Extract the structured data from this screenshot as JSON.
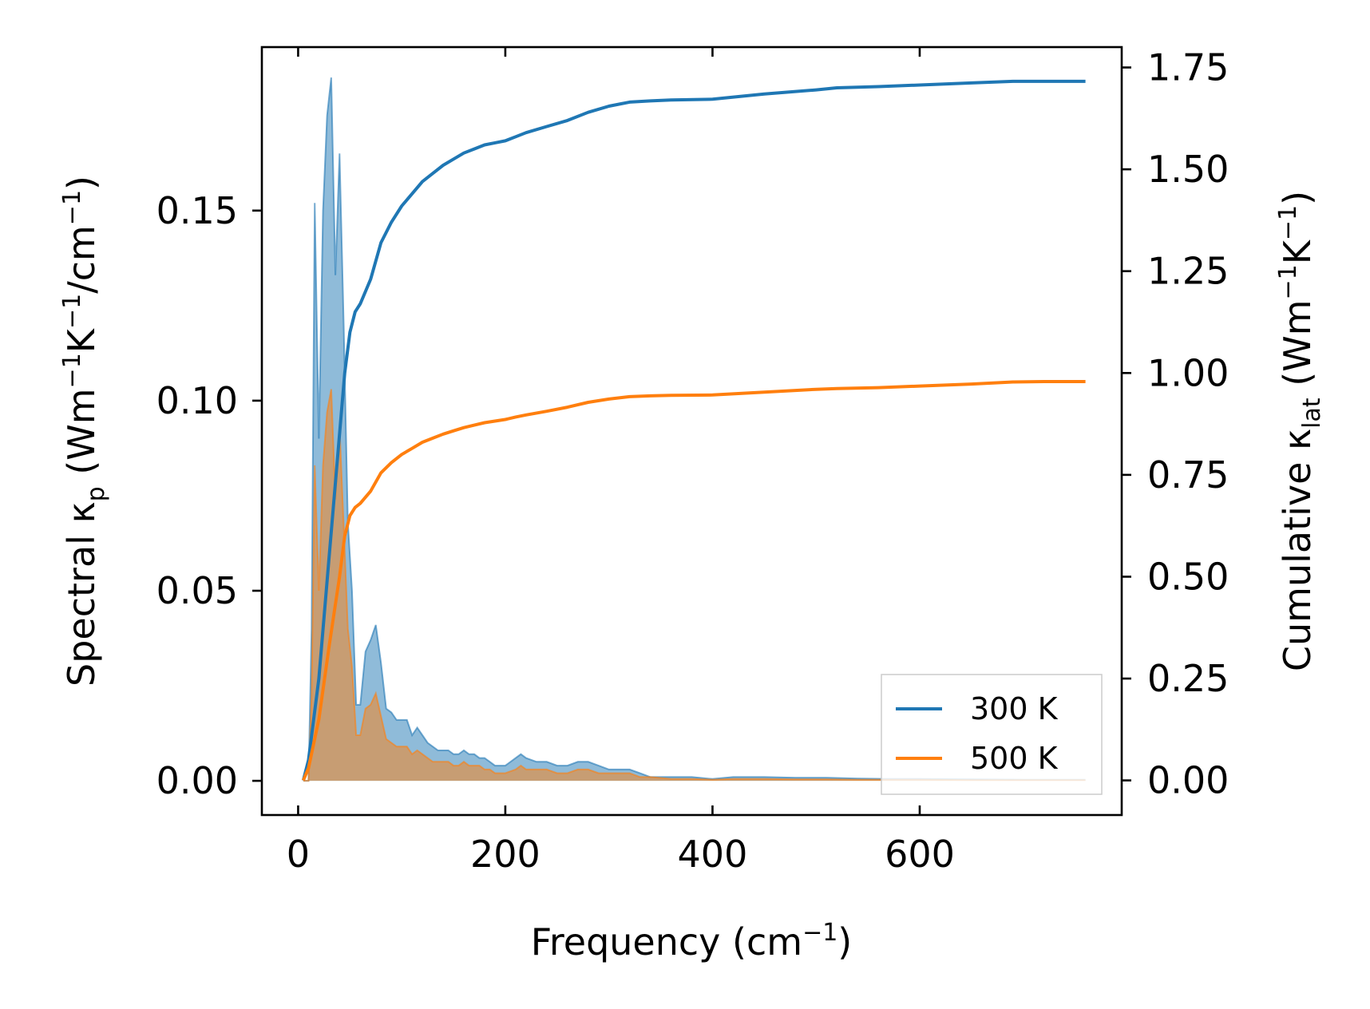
{
  "chart_data": {
    "type": "line",
    "xlabel": "Frequency (cm⁻¹)",
    "ylabel_left": "Spectral κp (Wm⁻¹K⁻¹/cm⁻¹)",
    "ylabel_right": "Cumulative κlat (Wm⁻¹K⁻¹)",
    "xlim": [
      -35,
      795
    ],
    "ylim_left": [
      -0.009,
      0.193
    ],
    "ylim_right": [
      -0.085,
      1.8
    ],
    "x_ticks": [
      "0",
      "200",
      "400",
      "600"
    ],
    "y_left_ticks": [
      "0.00",
      "0.05",
      "0.10",
      "0.15"
    ],
    "y_right_ticks": [
      "0.00",
      "0.25",
      "0.50",
      "0.75",
      "1.00",
      "1.25",
      "1.50",
      "1.75"
    ],
    "legend": {
      "location": "lower-right",
      "entries": [
        "300 K",
        "500 K"
      ]
    },
    "colors": {
      "s300": "#1f77b4",
      "s500": "#ff7f0e",
      "fill300": "#1f77b4",
      "fill500": "#ff7f0e"
    },
    "spectral": [
      {
        "name": "300 K",
        "x": [
          5,
          10,
          13,
          16,
          20,
          24,
          28,
          32,
          36,
          40,
          44,
          48,
          52,
          56,
          60,
          65,
          70,
          75,
          80,
          85,
          90,
          95,
          100,
          105,
          110,
          115,
          120,
          125,
          130,
          135,
          140,
          145,
          150,
          155,
          160,
          165,
          170,
          175,
          180,
          185,
          190,
          195,
          200,
          210,
          215,
          220,
          230,
          240,
          250,
          260,
          270,
          280,
          290,
          300,
          310,
          320,
          330,
          340,
          360,
          380,
          400,
          420,
          450,
          480,
          510,
          540,
          570,
          600,
          650,
          700,
          760
        ],
        "values": [
          0.0,
          0.0,
          0.04,
          0.152,
          0.09,
          0.15,
          0.175,
          0.185,
          0.133,
          0.165,
          0.12,
          0.068,
          0.05,
          0.02,
          0.02,
          0.034,
          0.037,
          0.041,
          0.031,
          0.019,
          0.018,
          0.016,
          0.016,
          0.016,
          0.012,
          0.014,
          0.012,
          0.01,
          0.009,
          0.008,
          0.008,
          0.008,
          0.007,
          0.007,
          0.008,
          0.007,
          0.007,
          0.006,
          0.006,
          0.005,
          0.004,
          0.004,
          0.004,
          0.006,
          0.007,
          0.006,
          0.005,
          0.005,
          0.004,
          0.004,
          0.005,
          0.005,
          0.004,
          0.003,
          0.003,
          0.003,
          0.002,
          0.001,
          0.001,
          0.001,
          0.0005,
          0.001,
          0.001,
          0.0008,
          0.0008,
          0.0006,
          0.0005,
          0.0005,
          0.0004,
          0.0003,
          0.0003
        ]
      },
      {
        "name": "500 K",
        "x": [
          5,
          10,
          13,
          16,
          20,
          24,
          28,
          32,
          36,
          40,
          44,
          48,
          52,
          56,
          60,
          65,
          70,
          75,
          80,
          85,
          90,
          95,
          100,
          105,
          110,
          115,
          120,
          125,
          130,
          135,
          140,
          145,
          150,
          155,
          160,
          165,
          170,
          175,
          180,
          185,
          190,
          195,
          200,
          210,
          215,
          220,
          230,
          240,
          250,
          260,
          270,
          280,
          290,
          300,
          310,
          320,
          330,
          340,
          360,
          380,
          400,
          420,
          450,
          480,
          510,
          540,
          570,
          600,
          650,
          700,
          760
        ],
        "values": [
          0.0,
          0.0,
          0.022,
          0.083,
          0.05,
          0.083,
          0.097,
          0.103,
          0.074,
          0.093,
          0.067,
          0.04,
          0.03,
          0.012,
          0.012,
          0.019,
          0.02,
          0.023,
          0.017,
          0.011,
          0.01,
          0.009,
          0.009,
          0.009,
          0.007,
          0.008,
          0.007,
          0.006,
          0.005,
          0.005,
          0.005,
          0.005,
          0.004,
          0.004,
          0.005,
          0.004,
          0.004,
          0.004,
          0.003,
          0.003,
          0.002,
          0.002,
          0.002,
          0.003,
          0.004,
          0.003,
          0.003,
          0.003,
          0.002,
          0.002,
          0.003,
          0.003,
          0.002,
          0.002,
          0.002,
          0.002,
          0.001,
          0.001,
          0.0005,
          0.0005,
          0.0003,
          0.0005,
          0.0005,
          0.0004,
          0.0004,
          0.0003,
          0.0003,
          0.0003,
          0.0002,
          0.0002,
          0.0002
        ]
      }
    ],
    "cumulative": [
      {
        "name": "300 K",
        "x": [
          5,
          10,
          20,
          30,
          40,
          45,
          50,
          55,
          60,
          70,
          80,
          90,
          100,
          110,
          120,
          130,
          140,
          150,
          160,
          170,
          180,
          190,
          200,
          210,
          220,
          240,
          260,
          280,
          300,
          320,
          340,
          360,
          400,
          450,
          500,
          520,
          560,
          600,
          650,
          690,
          720,
          760
        ],
        "values": [
          0.0,
          0.05,
          0.25,
          0.55,
          0.85,
          1.0,
          1.1,
          1.15,
          1.17,
          1.23,
          1.32,
          1.37,
          1.41,
          1.44,
          1.47,
          1.49,
          1.51,
          1.525,
          1.54,
          1.55,
          1.56,
          1.565,
          1.57,
          1.58,
          1.59,
          1.605,
          1.62,
          1.64,
          1.655,
          1.665,
          1.668,
          1.67,
          1.672,
          1.685,
          1.695,
          1.7,
          1.703,
          1.707,
          1.712,
          1.716,
          1.716,
          1.716
        ]
      },
      {
        "name": "500 K",
        "x": [
          5,
          10,
          20,
          30,
          40,
          45,
          50,
          55,
          60,
          70,
          80,
          90,
          100,
          110,
          120,
          130,
          140,
          150,
          160,
          170,
          180,
          190,
          200,
          210,
          220,
          240,
          260,
          280,
          300,
          320,
          340,
          360,
          400,
          450,
          500,
          520,
          560,
          600,
          650,
          690,
          720,
          760
        ],
        "values": [
          0.0,
          0.03,
          0.15,
          0.33,
          0.5,
          0.6,
          0.65,
          0.67,
          0.68,
          0.71,
          0.755,
          0.78,
          0.8,
          0.815,
          0.83,
          0.84,
          0.85,
          0.858,
          0.866,
          0.872,
          0.878,
          0.882,
          0.886,
          0.892,
          0.897,
          0.906,
          0.916,
          0.928,
          0.936,
          0.942,
          0.944,
          0.945,
          0.946,
          0.953,
          0.96,
          0.962,
          0.964,
          0.968,
          0.973,
          0.978,
          0.979,
          0.979
        ]
      }
    ]
  }
}
